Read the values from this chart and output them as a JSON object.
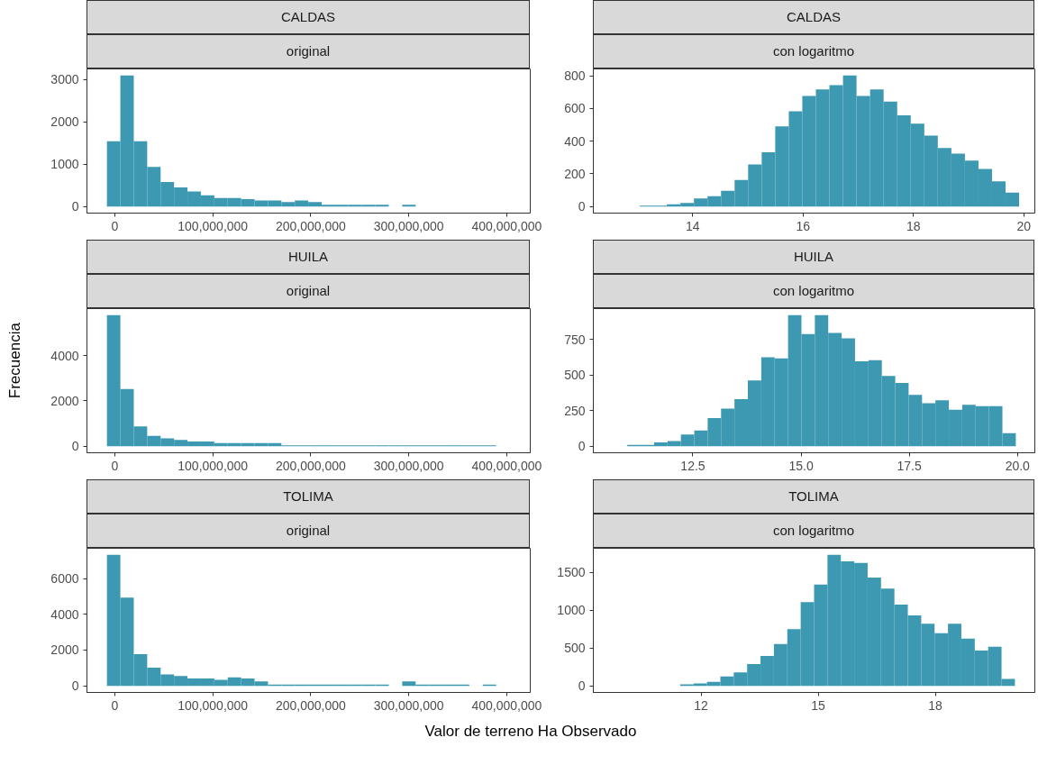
{
  "chart_data": [
    {
      "type": "histogram",
      "title": "CALDAS",
      "subtitle": "original",
      "color": "#3c99b1",
      "bins": [
        -8100000,
        5600000,
        19300000,
        33000000,
        46700000,
        60400000,
        74100000,
        87800000,
        101500000,
        115200000,
        128900000,
        142600000,
        156300000,
        170000000,
        183700000,
        197400000,
        211100000,
        224800000,
        238500000,
        252200000,
        265900000,
        279600000,
        293300000,
        307000000,
        320700000,
        334400000,
        348100000,
        361800000,
        375500000,
        389200000,
        402900000
      ],
      "values": [
        1540,
        3090,
        1540,
        934,
        580,
        452,
        354,
        264,
        203,
        203,
        173,
        143,
        143,
        105,
        143,
        105,
        40,
        40,
        40,
        40,
        40,
        0,
        40,
        0,
        0,
        0,
        0,
        0,
        0,
        0
      ],
      "xlim": [
        -28500000,
        424000000
      ],
      "ylim": [
        -155,
        3245
      ],
      "xticks": [
        {
          "value": 0,
          "label": "0"
        },
        {
          "value": 100000000,
          "label": "100,000,000"
        },
        {
          "value": 200000000,
          "label": "200,000,000"
        },
        {
          "value": 300000000,
          "label": "300,000,000"
        },
        {
          "value": 400000000,
          "label": "400,000,000"
        }
      ],
      "yticks": [
        0,
        1000,
        2000,
        3000
      ]
    },
    {
      "type": "histogram",
      "title": "CALDAS",
      "subtitle": "con logaritmo",
      "color": "#3c99b1",
      "bins": [
        12.55,
        12.796,
        13.041,
        13.287,
        13.532,
        13.778,
        14.023,
        14.269,
        14.514,
        14.76,
        15.005,
        15.251,
        15.496,
        15.742,
        15.987,
        16.233,
        16.478,
        16.724,
        16.969,
        17.215,
        17.46,
        17.706,
        17.951,
        18.197,
        18.442,
        18.688,
        18.933,
        19.179,
        19.424,
        19.67,
        19.915
      ],
      "values": [
        0,
        0,
        6,
        6,
        14,
        22,
        49,
        63,
        96,
        163,
        257,
        332,
        491,
        583,
        676,
        717,
        743,
        802,
        676,
        717,
        642,
        558,
        507,
        434,
        358,
        324,
        281,
        230,
        155,
        86
      ],
      "xlim": [
        12.2,
        20.2
      ],
      "ylim": [
        -40,
        842
      ],
      "xticks": [
        14,
        16,
        18,
        20
      ],
      "yticks": [
        0,
        200,
        400,
        600,
        800
      ]
    },
    {
      "type": "histogram",
      "title": "HUILA",
      "subtitle": "original",
      "color": "#3c99b1",
      "ylabel": "Frecuencia",
      "bins": [
        -8100000,
        5600000,
        19300000,
        33000000,
        46700000,
        60400000,
        74100000,
        87800000,
        101500000,
        115200000,
        128900000,
        142600000,
        156300000,
        170000000,
        183700000,
        197400000,
        211100000,
        224800000,
        238500000,
        252200000,
        265900000,
        279600000,
        293300000,
        307000000,
        320700000,
        334400000,
        348100000,
        361800000,
        375500000,
        389200000,
        402900000
      ],
      "values": [
        5790,
        2530,
        870,
        460,
        350,
        280,
        210,
        210,
        140,
        140,
        140,
        140,
        140,
        40,
        40,
        40,
        40,
        40,
        40,
        40,
        40,
        40,
        40,
        40,
        40,
        40,
        40,
        40,
        40,
        0
      ],
      "xlim": [
        -28500000,
        424000000
      ],
      "ylim": [
        -290,
        6080
      ],
      "xticks": [
        {
          "value": 0,
          "label": "0"
        },
        {
          "value": 100000000,
          "label": "100,000,000"
        },
        {
          "value": 200000000,
          "label": "200,000,000"
        },
        {
          "value": 300000000,
          "label": "300,000,000"
        },
        {
          "value": 400000000,
          "label": "400,000,000"
        }
      ],
      "yticks": [
        0,
        2000,
        4000
      ]
    },
    {
      "type": "histogram",
      "title": "HUILA",
      "subtitle": "con logaritmo",
      "color": "#3c99b1",
      "bins": [
        10.675,
        10.985,
        11.294,
        11.604,
        11.913,
        12.223,
        12.532,
        12.842,
        13.151,
        13.461,
        13.77,
        14.08,
        14.389,
        14.699,
        15.008,
        15.318,
        15.627,
        15.937,
        16.246,
        16.556,
        16.865,
        17.175,
        17.484,
        17.794,
        18.103,
        18.413,
        18.722,
        19.032,
        19.341,
        19.651,
        19.96
      ],
      "values": [
        0,
        9,
        9,
        27,
        36,
        82,
        111,
        198,
        264,
        331,
        462,
        624,
        616,
        920,
        787,
        920,
        796,
        758,
        596,
        604,
        493,
        444,
        360,
        302,
        322,
        256,
        291,
        282,
        282,
        91
      ],
      "xlim": [
        10.2,
        20.4
      ],
      "ylim": [
        -46,
        966
      ],
      "xticks": [
        {
          "value": 12.5,
          "label": "12.5"
        },
        {
          "value": 15,
          "label": "15.0"
        },
        {
          "value": 17.5,
          "label": "17.5"
        },
        {
          "value": 20,
          "label": "20.0"
        }
      ],
      "yticks": [
        0,
        250,
        500,
        750
      ]
    },
    {
      "type": "histogram",
      "title": "TOLIMA",
      "subtitle": "original",
      "color": "#3c99b1",
      "xlabel": "Valor de terreno Ha Observado",
      "bins": [
        -8100000,
        5600000,
        19300000,
        33000000,
        46700000,
        60400000,
        74100000,
        87800000,
        101500000,
        115200000,
        128900000,
        142600000,
        156300000,
        170000000,
        183700000,
        197400000,
        211100000,
        224800000,
        238500000,
        252200000,
        265900000,
        279600000,
        293300000,
        307000000,
        320700000,
        334400000,
        348100000,
        361800000,
        375500000,
        389200000,
        402900000
      ],
      "values": [
        7320,
        4930,
        1770,
        1020,
        640,
        550,
        410,
        410,
        340,
        480,
        410,
        250,
        80,
        80,
        80,
        80,
        80,
        80,
        80,
        80,
        80,
        0,
        250,
        80,
        80,
        80,
        80,
        0,
        80,
        0
      ],
      "xlim": [
        -28500000,
        424000000
      ],
      "ylim": [
        -366,
        7686
      ],
      "xticks": [
        {
          "value": 0,
          "label": "0"
        },
        {
          "value": 100000000,
          "label": "100,000,000"
        },
        {
          "value": 200000000,
          "label": "200,000,000"
        },
        {
          "value": 300000000,
          "label": "300,000,000"
        },
        {
          "value": 400000000,
          "label": "400,000,000"
        }
      ],
      "yticks": [
        0,
        2000,
        4000,
        6000
      ]
    },
    {
      "type": "histogram",
      "title": "TOLIMA",
      "subtitle": "con logaritmo",
      "color": "#3c99b1",
      "bins": [
        9.75,
        10.093,
        10.436,
        10.779,
        11.122,
        11.465,
        11.808,
        12.151,
        12.494,
        12.837,
        13.18,
        13.523,
        13.866,
        14.209,
        14.552,
        14.895,
        15.238,
        15.581,
        15.924,
        16.267,
        16.61,
        16.953,
        17.296,
        17.639,
        17.982,
        18.325,
        18.668,
        19.011,
        19.354,
        19.697,
        20.04
      ],
      "values": [
        0,
        0,
        0,
        0,
        0,
        21,
        33,
        54,
        125,
        179,
        288,
        396,
        554,
        750,
        1104,
        1338,
        1729,
        1642,
        1621,
        1429,
        1283,
        1071,
        929,
        821,
        696,
        821,
        625,
        467,
        517,
        92
      ],
      "xlim": [
        9.24,
        20.55
      ],
      "ylim": [
        -86,
        1815
      ],
      "xticks": [
        12,
        15,
        18
      ],
      "yticks": [
        0,
        500,
        1000,
        1500
      ]
    }
  ]
}
